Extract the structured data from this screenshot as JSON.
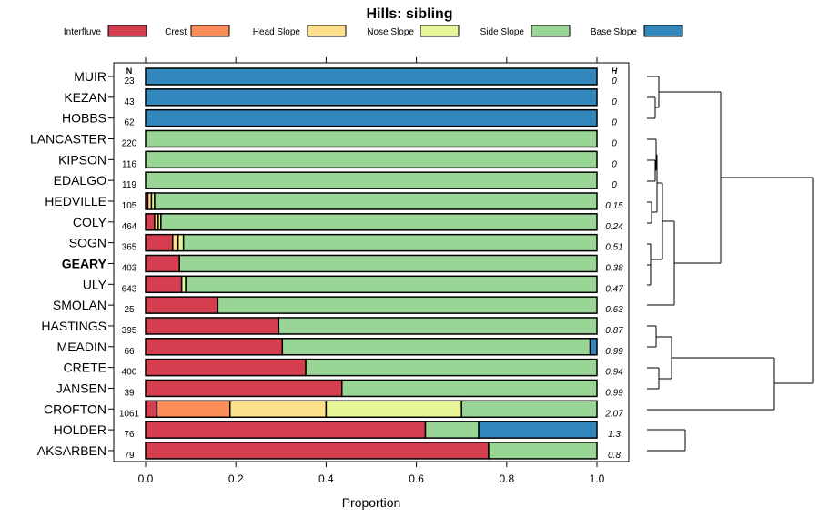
{
  "chart_data": {
    "type": "bar",
    "orientation": "horizontal",
    "stacked": true,
    "title": "Hills: sibling",
    "xlabel": "Proportion",
    "ylabel": "",
    "xlim": [
      0,
      1
    ],
    "xticks": [
      "0.0",
      "0.2",
      "0.4",
      "0.6",
      "0.8",
      "1.0"
    ],
    "n_header": "N",
    "h_header": "H",
    "legend": [
      {
        "name": "Interfluve",
        "color": "#D53E4F"
      },
      {
        "name": "Crest",
        "color": "#FC8D59"
      },
      {
        "name": "Head Slope",
        "color": "#FEE08B"
      },
      {
        "name": "Nose Slope",
        "color": "#E6F598"
      },
      {
        "name": "Side Slope",
        "color": "#99D594"
      },
      {
        "name": "Base Slope",
        "color": "#3288BD"
      }
    ],
    "categories": [
      "MUIR",
      "KEZAN",
      "HOBBS",
      "LANCASTER",
      "KIPSON",
      "EDALGO",
      "HEDVILLE",
      "COLY",
      "SOGN",
      "GEARY",
      "ULY",
      "SMOLAN",
      "HASTINGS",
      "MEADIN",
      "CRETE",
      "JANSEN",
      "CROFTON",
      "HOLDER",
      "AKSARBEN"
    ],
    "highlight": "GEARY",
    "N": [
      "23",
      "43",
      "62",
      "220",
      "116",
      "119",
      "105",
      "464",
      "365",
      "403",
      "643",
      "25",
      "395",
      "66",
      "400",
      "39",
      "1061",
      "76",
      "79"
    ],
    "H": [
      "0",
      "0",
      "0",
      "0",
      "0",
      "0",
      "0.15",
      "0.24",
      "0.51",
      "0.38",
      "0.47",
      "0.63",
      "0.87",
      "0.99",
      "0.94",
      "0.99",
      "2.07",
      "1.3",
      "0.8"
    ],
    "series": [
      {
        "name": "Interfluve",
        "values": [
          0,
          0,
          0,
          0,
          0,
          0,
          0.005,
          0.02,
          0.06,
          0.075,
          0.08,
          0.16,
          0.295,
          0.303,
          0.355,
          0.435,
          0.025,
          0.62,
          0.76
        ]
      },
      {
        "name": "Crest",
        "values": [
          0,
          0,
          0,
          0,
          0,
          0,
          0,
          0,
          0,
          0,
          0,
          0,
          0,
          0,
          0,
          0,
          0.162,
          0,
          0
        ]
      },
      {
        "name": "Head Slope",
        "values": [
          0,
          0,
          0,
          0,
          0,
          0,
          0.008,
          0.008,
          0.012,
          0,
          0,
          0,
          0,
          0,
          0,
          0,
          0.213,
          0,
          0
        ]
      },
      {
        "name": "Nose Slope",
        "values": [
          0,
          0,
          0,
          0,
          0,
          0,
          0.007,
          0.006,
          0.012,
          0,
          0.009,
          0,
          0,
          0,
          0,
          0,
          0.3,
          0,
          0
        ]
      },
      {
        "name": "Side Slope",
        "values": [
          0,
          0,
          0,
          1,
          1,
          1,
          0.98,
          0.966,
          0.916,
          0.925,
          0.911,
          0.84,
          0.705,
          0.682,
          0.645,
          0.565,
          0.3,
          0.118,
          0.24
        ]
      },
      {
        "name": "Base Slope",
        "values": [
          1,
          1,
          1,
          0,
          0,
          0,
          0,
          0,
          0,
          0,
          0,
          0,
          0,
          0.015,
          0,
          0,
          0,
          0.262,
          0
        ]
      }
    ]
  }
}
